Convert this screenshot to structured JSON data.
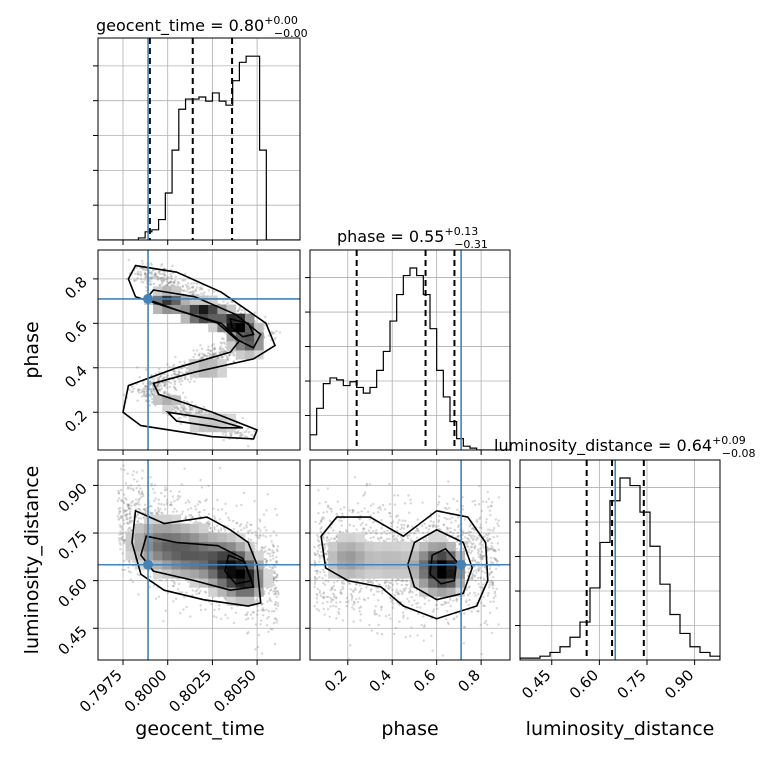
{
  "chart_data": {
    "type": "corner",
    "parameters": [
      "geocent_time",
      "phase",
      "luminosity_distance"
    ],
    "titles": [
      {
        "param": "geocent_time",
        "text": "geocent_time = 0.80",
        "sup": "+0.00",
        "sub": "−0.00"
      },
      {
        "param": "phase",
        "text": "phase = 0.55",
        "sup": "+0.13",
        "sub": "−0.31"
      },
      {
        "param": "luminosity_distance",
        "text": "luminosity_distance = 0.64",
        "sup": "+0.09",
        "sub": "−0.08"
      }
    ],
    "axis_labels": {
      "x": [
        "geocent_time",
        "phase",
        "luminosity_distance"
      ],
      "y": [
        "phase",
        "luminosity_distance"
      ]
    },
    "ranges": {
      "geocent_time": [
        0.7961,
        0.8074
      ],
      "phase": [
        0.03,
        0.93
      ],
      "luminosity_distance": [
        0.35,
        0.98
      ]
    },
    "ticks": {
      "geocent_time": {
        "values": [
          0.7975,
          0.8,
          0.8025,
          0.805
        ],
        "labels": [
          "0.7975",
          "0.8000",
          "0.8025",
          "0.8050"
        ]
      },
      "phase": {
        "values": [
          0.2,
          0.4,
          0.6,
          0.8
        ],
        "labels": [
          "0.2",
          "0.4",
          "0.6",
          "0.8"
        ]
      },
      "luminosity_distance": {
        "values": [
          0.45,
          0.6,
          0.75,
          0.9
        ],
        "labels": [
          "0.45",
          "0.60",
          "0.75",
          "0.90"
        ]
      }
    },
    "truths": {
      "geocent_time": 0.7989,
      "phase": 0.71,
      "luminosity_distance": 0.65
    },
    "quantiles": {
      "geocent_time": [
        0.799,
        0.8014,
        0.8036
      ],
      "phase": [
        0.24,
        0.55,
        0.68
      ],
      "luminosity_distance": [
        0.56,
        0.64,
        0.74
      ]
    },
    "histograms": {
      "geocent_time": {
        "edges_range": [
          0.7961,
          0.8074
        ],
        "counts": [
          0,
          0,
          0,
          0,
          0,
          0,
          1,
          4,
          5,
          10,
          23,
          44,
          64,
          69,
          69,
          70,
          68,
          72,
          68,
          66,
          78,
          87,
          90,
          90,
          44,
          0,
          0,
          0,
          0,
          0
        ]
      },
      "phase": {
        "edges_range": [
          0.03,
          0.93
        ],
        "counts": [
          8,
          22,
          35,
          38,
          37,
          34,
          36,
          33,
          30,
          33,
          42,
          52,
          68,
          82,
          92,
          96,
          92,
          82,
          64,
          42,
          28,
          15,
          6,
          2,
          1,
          0,
          0,
          0,
          0,
          0
        ]
      },
      "luminosity_distance": {
        "edges_range": [
          0.35,
          0.98
        ],
        "counts": [
          1,
          1,
          2,
          4,
          7,
          12,
          20,
          38,
          62,
          84,
          96,
          92,
          78,
          60,
          40,
          24,
          14,
          7,
          4,
          2
        ]
      }
    }
  }
}
